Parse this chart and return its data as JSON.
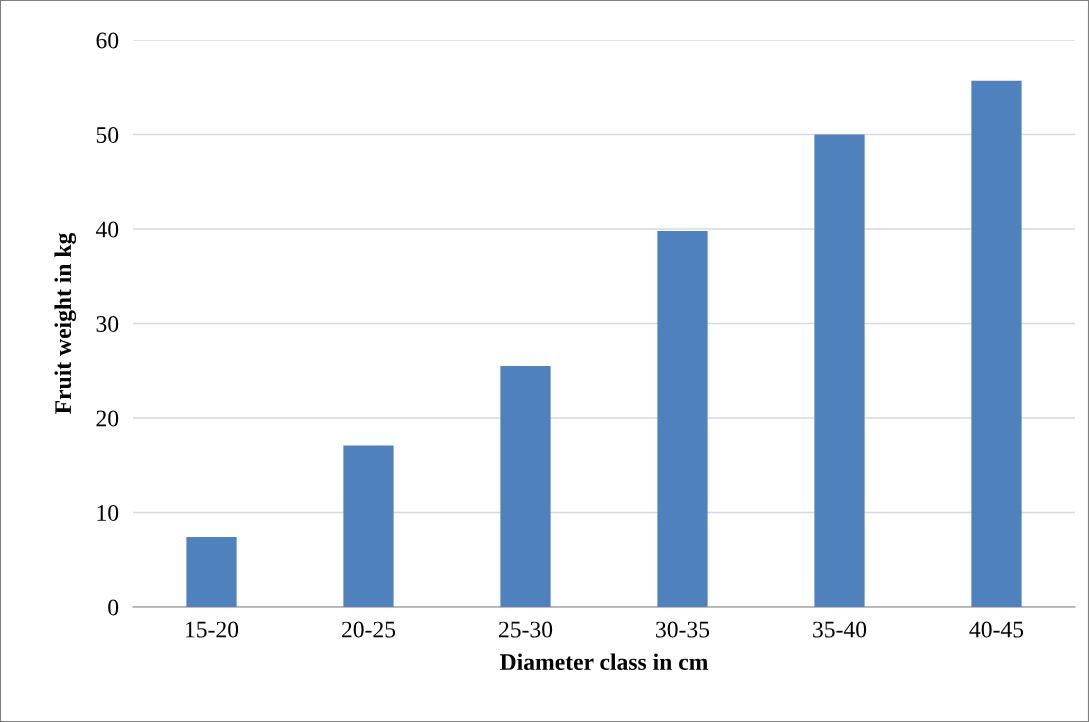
{
  "chart_data": {
    "type": "bar",
    "xlabel": "Diameter class in cm",
    "ylabel": "Fruit weight in kg",
    "categories": [
      "15-20",
      "20-25",
      "25-30",
      "30-35",
      "35-40",
      "40-45"
    ],
    "values": [
      7.4,
      17.1,
      25.5,
      39.8,
      50.0,
      55.7
    ],
    "color": "#4f81bd",
    "ylim": [
      0,
      60
    ],
    "yticks": [
      0,
      10,
      20,
      30,
      40,
      50,
      60
    ],
    "grid": "y"
  }
}
